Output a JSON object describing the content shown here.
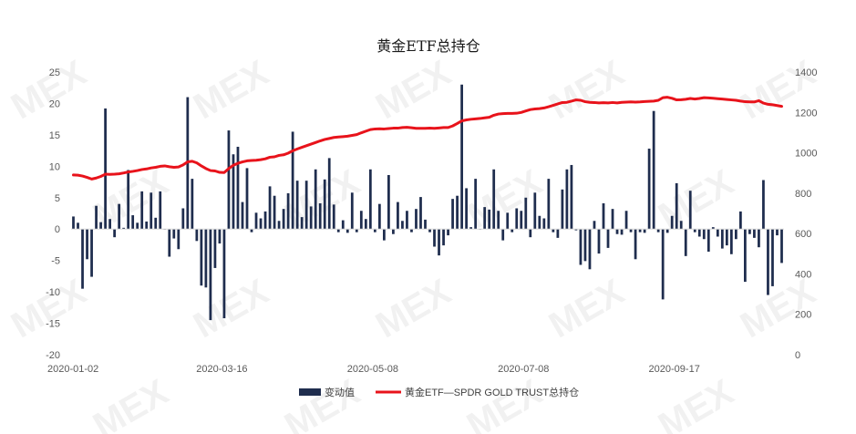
{
  "chart_data": {
    "type": "bar+line",
    "title": "黄金ETF总持仓",
    "watermark": "MEX",
    "colors": {
      "bar": "#1f2d4e",
      "line": "#e8131b"
    },
    "legend_placement": "bottom",
    "grid": false,
    "x_tick_labels": [
      "2020-01-02",
      "2020-03-16",
      "2020-05-08",
      "2020-07-08",
      "2020-09-17"
    ],
    "y_left": {
      "min": -20,
      "max": 25,
      "step": 5,
      "ticks": [
        "-20",
        "-15",
        "-10",
        "-5",
        "0",
        "5",
        "10",
        "15",
        "20",
        "25"
      ]
    },
    "y_right": {
      "min": 0,
      "max": 1400,
      "step": 200,
      "ticks": [
        "0",
        "200",
        "400",
        "600",
        "800",
        "1000",
        "1200",
        "1400"
      ]
    },
    "series": [
      {
        "name": "变动值",
        "type": "bar",
        "axis": "left",
        "values": [
          2.0,
          1.0,
          -9.5,
          -4.8,
          -7.6,
          3.7,
          1.1,
          19.2,
          1.6,
          -1.3,
          4.0,
          0.2,
          9.4,
          2.2,
          1.0,
          6.0,
          1.2,
          5.8,
          1.8,
          6.0,
          0.0,
          -4.4,
          -1.5,
          -3.2,
          3.3,
          21.0,
          8.0,
          -1.9,
          -9.0,
          -9.3,
          -14.5,
          -6.2,
          -2.3,
          -14.2,
          15.7,
          11.9,
          13.1,
          4.3,
          9.7,
          -0.5,
          2.6,
          1.7,
          2.8,
          6.8,
          5.3,
          1.3,
          3.2,
          5.7,
          15.5,
          7.7,
          1.9,
          7.7,
          3.6,
          9.5,
          4.1,
          7.9,
          11.3,
          3.9,
          -0.5,
          1.4,
          -0.6,
          5.8,
          -0.5,
          2.9,
          1.6,
          9.5,
          -0.5,
          4.0,
          -1.8,
          8.6,
          -0.8,
          4.3,
          1.3,
          2.9,
          -0.5,
          3.2,
          5.1,
          1.5,
          -0.5,
          -2.8,
          -4.2,
          -2.6,
          -1.0,
          4.8,
          5.3,
          23.0,
          6.5,
          0.3,
          8.0,
          0.0,
          3.5,
          3.1,
          9.5,
          2.9,
          -1.8,
          2.6,
          -0.5,
          3.3,
          2.9,
          5.0,
          -1.3,
          5.8,
          2.1,
          1.7,
          8.0,
          -0.5,
          -1.4,
          6.3,
          9.5,
          10.2,
          -0.2,
          -5.7,
          -5.1,
          -6.4,
          1.3,
          -3.9,
          4.1,
          -3.0,
          3.2,
          -0.8,
          -0.9,
          2.9,
          -0.5,
          -4.8,
          -0.5,
          -0.6,
          12.8,
          18.8,
          -0.5,
          -11.2,
          -0.6,
          2.1,
          7.3,
          1.3,
          -4.3,
          6.1,
          -0.5,
          -1.2,
          -1.6,
          -3.6,
          0.3,
          -1.2,
          -3.1,
          -2.6,
          -4.0,
          -1.6,
          2.8,
          -8.4,
          -0.8,
          -1.4,
          -2.9,
          7.8,
          -10.5,
          -9.1,
          -1.0,
          -5.4
        ]
      },
      {
        "name": "黄金ETF—SPDR GOLD TRUST总持仓",
        "type": "line",
        "axis": "right",
        "values": [
          890,
          889,
          885,
          878,
          870,
          875,
          883,
          894,
          893,
          894,
          896,
          900,
          905,
          908,
          912,
          917,
          920,
          925,
          928,
          933,
          935,
          931,
          928,
          930,
          940,
          955,
          958,
          950,
          935,
          922,
          912,
          910,
          903,
          902,
          922,
          938,
          948,
          955,
          960,
          962,
          963,
          966,
          970,
          978,
          980,
          987,
          990,
          998,
          1010,
          1019,
          1027,
          1035,
          1043,
          1051,
          1059,
          1066,
          1071,
          1076,
          1078,
          1080,
          1082,
          1086,
          1090,
          1099,
          1107,
          1115,
          1118,
          1119,
          1118,
          1120,
          1122,
          1122,
          1125,
          1126,
          1124,
          1121,
          1121,
          1121,
          1122,
          1121,
          1123,
          1125,
          1125,
          1133,
          1145,
          1158,
          1163,
          1166,
          1168,
          1170,
          1173,
          1176,
          1186,
          1192,
          1194,
          1195,
          1195,
          1196,
          1200,
          1207,
          1214,
          1217,
          1219,
          1222,
          1228,
          1235,
          1242,
          1249,
          1250,
          1256,
          1262,
          1260,
          1253,
          1250,
          1249,
          1247,
          1248,
          1247,
          1249,
          1247,
          1250,
          1251,
          1252,
          1251,
          1252,
          1254,
          1255,
          1256,
          1260,
          1273,
          1275,
          1270,
          1262,
          1263,
          1265,
          1269,
          1266,
          1269,
          1273,
          1272,
          1270,
          1268,
          1266,
          1264,
          1262,
          1260,
          1256,
          1253,
          1252,
          1252,
          1258,
          1246,
          1240,
          1238,
          1234,
          1230
        ]
      }
    ]
  }
}
